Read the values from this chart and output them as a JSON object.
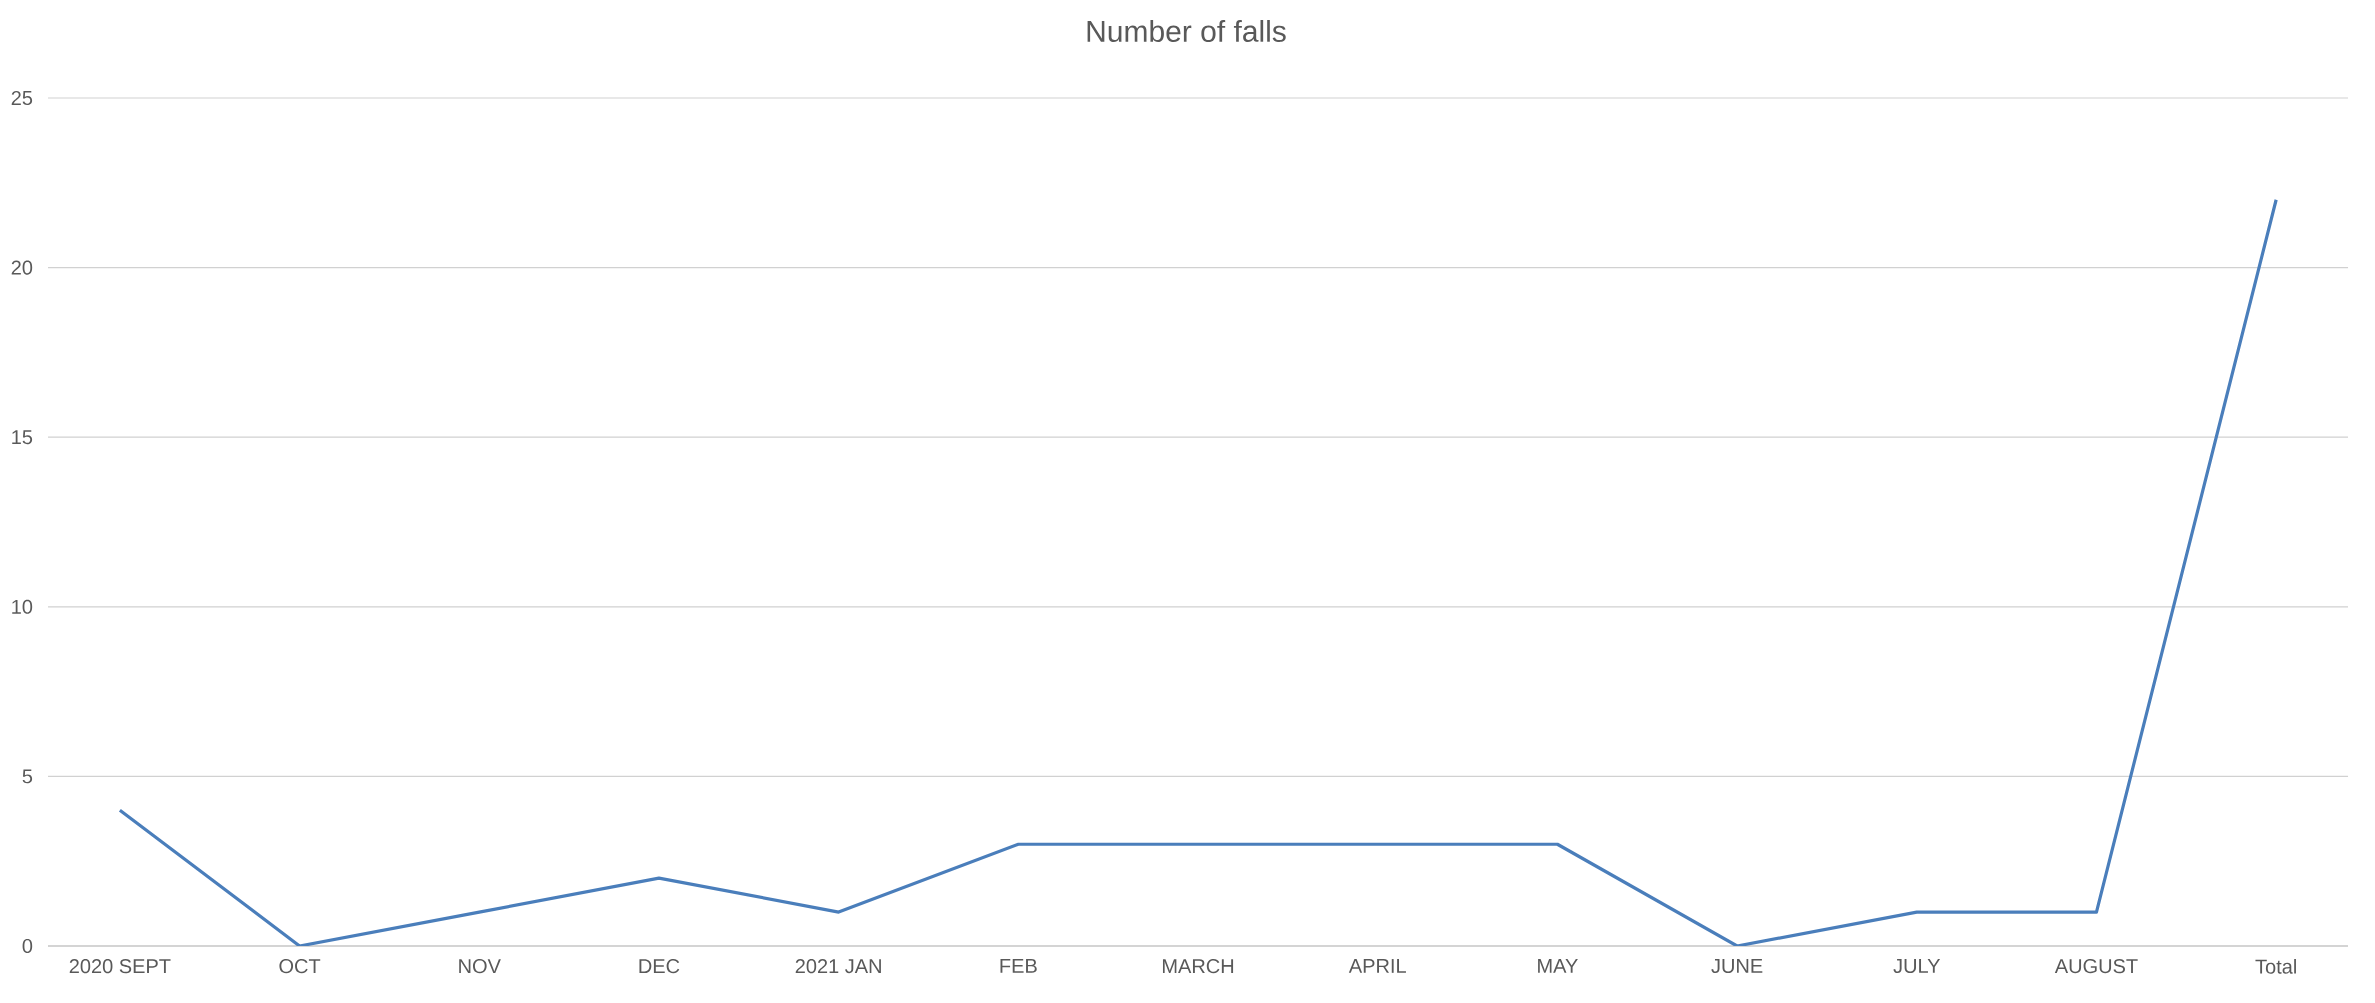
{
  "chart_data": {
    "type": "line",
    "title": "Number of falls",
    "categories": [
      "2020 SEPT",
      "OCT",
      "NOV",
      "DEC",
      "2021 JAN",
      "FEB",
      "MARCH",
      "APRIL",
      "MAY",
      "JUNE",
      "JULY",
      "AUGUST",
      "Total"
    ],
    "series": [
      {
        "color": "#4a7ebb",
        "values": [
          4,
          0,
          1,
          2,
          1,
          3,
          3,
          3,
          3,
          0,
          1,
          1,
          22
        ]
      }
    ],
    "ylim": [
      0,
      25
    ],
    "yticks": [
      0,
      5,
      10,
      15,
      20,
      25
    ],
    "grid": "y",
    "marker": "none",
    "line_style": "solid"
  }
}
